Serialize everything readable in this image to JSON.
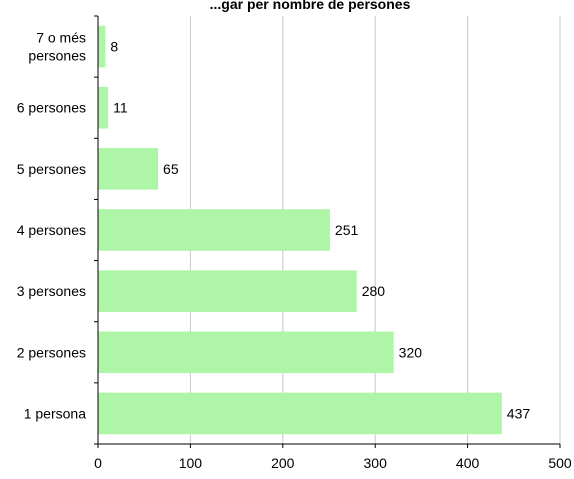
{
  "chart_data": {
    "type": "bar",
    "orientation": "horizontal",
    "title": "...gar per nombre de persones",
    "xlabel": "",
    "ylabel": "",
    "categories": [
      "1 persona",
      "2 persones",
      "3 persones",
      "4 persones",
      "5 persones",
      "6 persones",
      "7 o més persones"
    ],
    "category_label_lines": [
      [
        "1 persona"
      ],
      [
        "2 persones"
      ],
      [
        "3 persones"
      ],
      [
        "4 persones"
      ],
      [
        "5 persones"
      ],
      [
        "6 persones"
      ],
      [
        "7 o més",
        "persones"
      ]
    ],
    "values": [
      437,
      320,
      280,
      251,
      65,
      11,
      8
    ],
    "data_labels": [
      "437",
      "320",
      "280",
      "251",
      "65",
      "11",
      "8"
    ],
    "xlim": [
      0,
      500
    ],
    "x_ticks": [
      0,
      100,
      200,
      300,
      400,
      500
    ],
    "x_tick_labels": [
      "0",
      "100",
      "200",
      "300",
      "400",
      "500"
    ],
    "grid": "vertical",
    "legend": "none",
    "colors": {
      "bar": "#aef5a8",
      "grid": "#c8c8c8",
      "axis": "#000000",
      "text": "#000000"
    }
  }
}
